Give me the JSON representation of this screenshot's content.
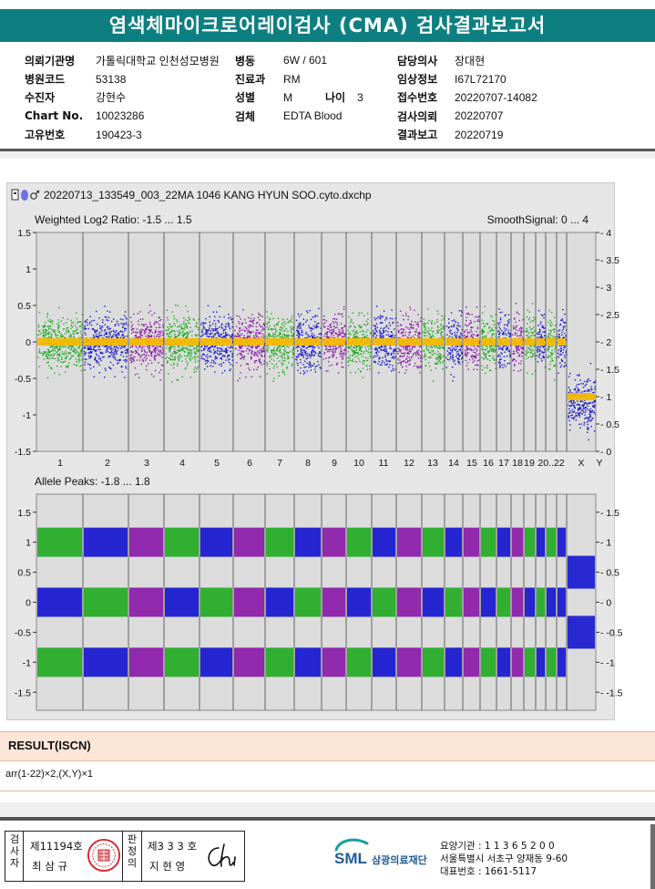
{
  "title": "염색체마이크로어레이검사 (CMA) 검사결과보고서",
  "info": {
    "col1": [
      {
        "label": "의뢰기관명",
        "value": "가톨릭대학교 인천성모병원"
      },
      {
        "label": "병원코드",
        "value": "53138"
      },
      {
        "label": "수진자",
        "value": "강현수"
      },
      {
        "label": "Chart No.",
        "value": "10023286"
      },
      {
        "label": "고유번호",
        "value": "190423-3"
      }
    ],
    "col2": [
      {
        "label": "병동",
        "value": "6W / 601"
      },
      {
        "label": "진료과",
        "value": "RM"
      },
      {
        "label": "성별",
        "value": "M"
      },
      {
        "label": "검체",
        "value": "EDTA Blood"
      }
    ],
    "age": {
      "label": "나이",
      "value": "3"
    },
    "col3": [
      {
        "label": "담당의사",
        "value": "장대현"
      },
      {
        "label": "임상정보",
        "value": "I67L72170"
      },
      {
        "label": "접수번호",
        "value": "20220707-14082"
      },
      {
        "label": "검사의뢰",
        "value": "20220707"
      },
      {
        "label": "결과보고",
        "value": "20220719"
      }
    ]
  },
  "cyto": {
    "filename": "20220713_133549_003_22MA 1046 KANG HYUN SOO.cyto.dxchp",
    "top_label_left": "Weighted Log2 Ratio: -1.5 ... 1.5",
    "top_label_right": "SmoothSignal: 0 ... 4",
    "bottom_label": "Allele Peaks: -1.8 ... 1.8",
    "chromosomes": [
      "1",
      "2",
      "3",
      "4",
      "5",
      "6",
      "7",
      "8",
      "9",
      "10",
      "11",
      "12",
      "13",
      "14",
      "15",
      "16",
      "17",
      "18",
      "19",
      "20",
      "21",
      "22",
      "X",
      "Y"
    ],
    "x_tick_labels": [
      "1",
      "2",
      "3",
      "4",
      "5",
      "6",
      "7",
      "8",
      "9",
      "10",
      "11",
      "12",
      "13",
      "14",
      "15",
      "16",
      "17",
      "18",
      "19",
      "20..22",
      "X",
      "Y"
    ],
    "colors": {
      "green": "#22aa22",
      "blue": "#1515d0",
      "purple": "#8a1aa8",
      "orange": "#f5b800",
      "panel_bg": "#dcdcdc"
    },
    "log2_ticks": [
      "1.5",
      "1",
      "0.5",
      "0",
      "-0.5",
      "-1",
      "-1.5"
    ],
    "smooth_ticks": [
      "4",
      "3.5",
      "3",
      "2.5",
      "2",
      "1.5",
      "1",
      "0.5",
      "0"
    ],
    "allele_ticks": [
      "1.5",
      "1",
      "0.5",
      "0",
      "-0.5",
      "-1",
      "-1.5"
    ],
    "allele_right_ticks": [
      "1.5",
      "1",
      "0.5",
      "0",
      "-0.5",
      "-1",
      "-1.5"
    ],
    "copy_number_autosome": 2,
    "copy_number_x": 1
  },
  "result": {
    "header": "RESULT(ISCN)",
    "value": "arr(1-22)×2,(X,Y)×1"
  },
  "sign": {
    "left_label": "검사자",
    "left_line1": "제11194호",
    "left_line2": "최 삼 규",
    "mid_label": "판정의",
    "right_line1": "제3 3 3 호",
    "right_line2": "지 현 영",
    "signature": "Chi"
  },
  "lab": {
    "brand": "SML",
    "company": "삼광의료재단",
    "line1": "요양기관 : 1 1 3 6 5 2 0 0",
    "line2": "서울특별시 서초구 양재동 9-60",
    "line3": "대표번호 : 1661-5117"
  }
}
